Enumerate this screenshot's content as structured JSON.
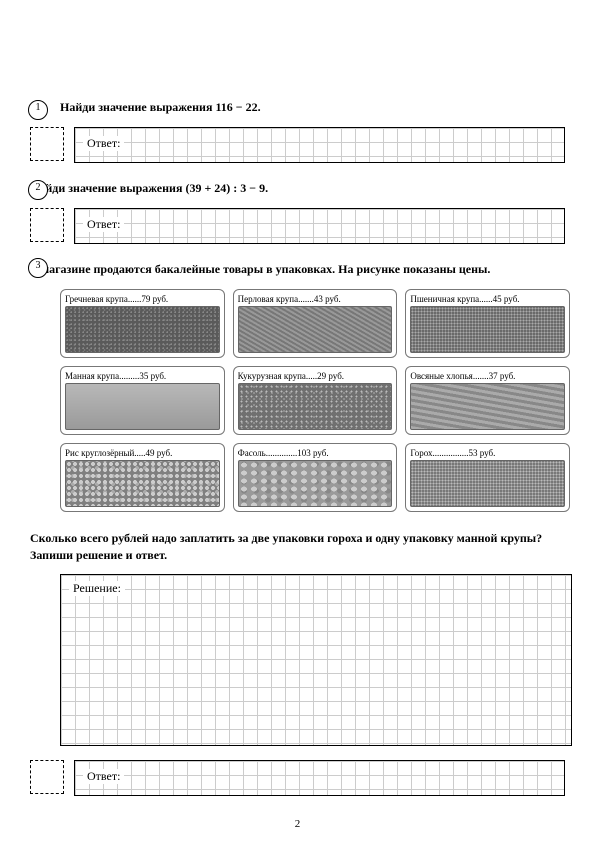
{
  "page_number": "2",
  "q1": {
    "num": "1",
    "text": "Найди значение выражения 116 − 22."
  },
  "q2": {
    "num": "2",
    "text": "Найди значение выражения (39 + 24) : 3 − 9."
  },
  "q3": {
    "num": "3",
    "intro": "В магазине продаются бакалейные товары в упаковках. На рисунке показаны цены.",
    "products": [
      {
        "name": "Гречневая крупа",
        "price": "79 руб.",
        "tex": "tex1"
      },
      {
        "name": "Перловая крупа",
        "price": "43 руб.",
        "tex": "tex2"
      },
      {
        "name": "Пшеничная крупа",
        "price": "45 руб.",
        "tex": "tex3"
      },
      {
        "name": "Манная крупа",
        "price": "35 руб.",
        "tex": "tex4"
      },
      {
        "name": "Кукурузная крупа",
        "price": "29 руб.",
        "tex": "tex5"
      },
      {
        "name": "Овсяные хлопья",
        "price": "37 руб.",
        "tex": "tex6"
      },
      {
        "name": "Рис круглозёрный",
        "price": "49 руб.",
        "tex": "tex7"
      },
      {
        "name": "Фасоль",
        "price": "103 руб.",
        "tex": "tex8"
      },
      {
        "name": "Горох",
        "price": "53 руб.",
        "tex": "tex9"
      }
    ],
    "question": "Сколько всего рублей надо заплатить за две упаковки гороха и одну упаковку манной крупы? Запиши решение и ответ."
  },
  "labels": {
    "answer": "Ответ:",
    "solution": "Решение:"
  }
}
